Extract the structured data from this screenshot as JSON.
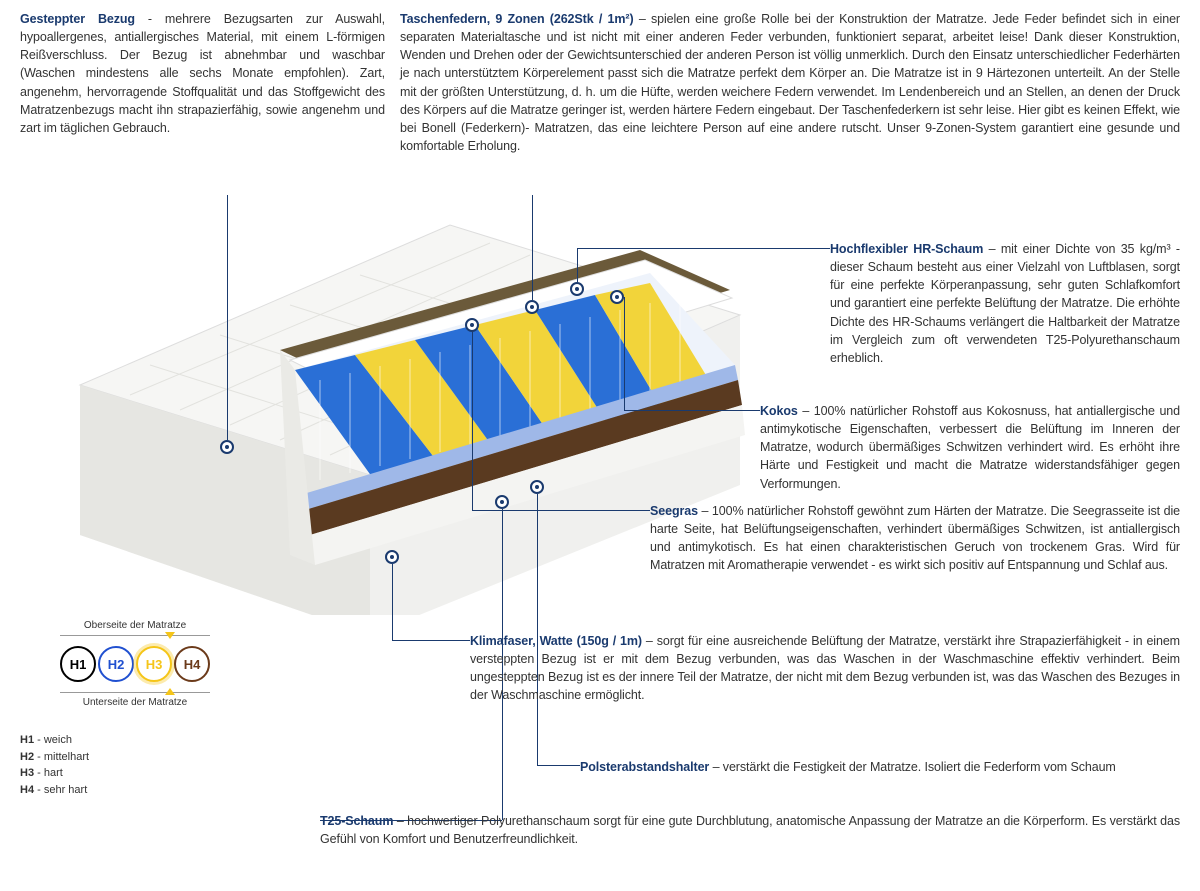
{
  "colors": {
    "title": "#1a3a6e",
    "text": "#333333",
    "marker_border": "#1a3a6e",
    "leader": "#1a3a6e"
  },
  "top_left": {
    "title": "Gesteppter Bezug",
    "body": " - mehrere Bezugsarten zur Auswahl, hypoallergenes, antiallergisches Material, mit einem L-förmigen Reißverschluss. Der Bezug ist abnehmbar und waschbar (Waschen mindestens alle sechs Monate empfohlen). Zart, angenehm, hervorragende Stoffqualität und das Stoffgewicht des Matratzenbezugs macht ihn strapazierfähig, sowie angenehm und zart im täglichen Gebrauch."
  },
  "top_right": {
    "title": "Taschenfedern, 9 Zonen (262Stk / 1m²)",
    "body": " – spielen eine große Rolle bei der Konstruktion der Matratze. Jede Feder befindet sich in einer separaten Materialtasche und ist nicht mit einer anderen Feder verbunden, funktioniert separat, arbeitet leise! Dank dieser Konstruktion, Wenden und Drehen oder der Gewichtsunterschied der anderen Person ist völlig unmerklich. Durch den Einsatz unterschiedlicher Federhärten je nach unterstütztem Körperelement passt sich die Matratze perfekt dem Körper an. Die Matratze ist in 9 Härtezonen unterteilt. An der Stelle mit der größten Unterstützung, d. h. um die Hüfte, werden weichere Federn verwendet. Im Lendenbereich und an Stellen, an denen der Druck des Körpers auf die Matratze geringer ist, werden härtere Federn eingebaut. Der Taschenfederkern ist sehr leise. Hier gibt es keinen Effekt, wie bei Bonell (Federkern)- Matratzen, das eine leichtere Person auf eine andere rutscht. Unser 9-Zonen-System garantiert eine gesunde und komfortable Erholung."
  },
  "sections": {
    "hr_schaum": {
      "title": "Hochflexibler HR-Schaum",
      "body": " – mit einer Dichte von 35 kg/m³ - dieser Schaum besteht aus einer Vielzahl von Luftblasen, sorgt für eine perfekte Körperanpassung, sehr guten Schlafkomfort und garantiert eine perfekte Belüftung der Matratze. Die erhöhte Dichte des HR-Schaums verlängert die Haltbarkeit der Matratze im Vergleich zum oft verwendeten T25-Polyurethanschaum erheblich."
    },
    "kokos": {
      "title": "Kokos",
      "body": " – 100% natürlicher Rohstoff aus Kokosnuss, hat antiallergische und antimykotische Eigenschaften, verbessert die Belüftung im Inneren der Matratze, wodurch übermäßiges Schwitzen verhindert wird. Es erhöht ihre Härte und Festigkeit und macht die Matratze widerstandsfähiger gegen Verformungen."
    },
    "seegras": {
      "title": "Seegras",
      "body": " – 100% natürlicher Rohstoff gewöhnt zum Härten der Matratze. Die Seegrasseite ist die harte Seite, hat Belüftungseigenschaften, verhindert übermäßiges Schwitzen, ist antiallergisch und antimykotisch. Es hat einen charakteristischen Geruch von trockenem Gras. Wird für Matratzen mit Aromatherapie verwendet - es wirkt sich positiv auf Entspannung und Schlaf aus."
    },
    "klimafaser": {
      "title": "Klimafaser, Watte (150g / 1m)",
      "body": " – sorgt für eine ausreichende Belüftung der Matratze, verstärkt ihre Strapazierfähigkeit - in einem versteppten Bezug ist er mit dem Bezug verbunden, was das Waschen in der Waschmaschine effektiv verhindert. Beim ungesteppten Bezug ist es der innere Teil der Matratze, der nicht mit dem Bezug verbunden ist, was das Waschen des Bezuges in der Waschmaschine ermöglicht."
    },
    "polster": {
      "title": "Polsterabstandshalter",
      "body": " – verstärkt die Festigkeit der Matratze. Isoliert die Federform vom Schaum"
    },
    "t25": {
      "title": "T25-Schaum",
      "body": " – hochwertiger Polyurethanschaum sorgt für eine gute Durchblutung, anatomische Anpassung der Matratze an die Körperform. Es verstärkt das Gefühl von Komfort und Benutzerfreundlichkeit."
    }
  },
  "legend": {
    "top_label": "Oberseite der Matratze",
    "bottom_label": "Unterseite der Matratze",
    "circles": [
      {
        "label": "H1",
        "color": "#000000",
        "text_color": "#000000"
      },
      {
        "label": "H2",
        "color": "#2050d0",
        "text_color": "#2050d0"
      },
      {
        "label": "H3",
        "color": "#f5c518",
        "text_color": "#f5c518"
      },
      {
        "label": "H4",
        "color": "#6b3a1a",
        "text_color": "#6b3a1a"
      }
    ],
    "active_index": 2,
    "keys": [
      {
        "k": "H1",
        "v": " - weich"
      },
      {
        "k": "H2",
        "v": " - mittelhart"
      },
      {
        "k": "H3",
        "v": " - hart"
      },
      {
        "k": "H4",
        "v": " - sehr hart"
      }
    ]
  },
  "mattress": {
    "colors": {
      "cover": "#f2f2f0",
      "cover_shadow": "#d8d8d4",
      "seegras": "#6b5a3a",
      "hr_foam": "#ffffff",
      "spring_blue": "#2a6fd6",
      "spring_yellow": "#f2d43a",
      "kokos": "#5a3a20",
      "t25": "#9fb8e8",
      "base": "#ececec"
    }
  }
}
